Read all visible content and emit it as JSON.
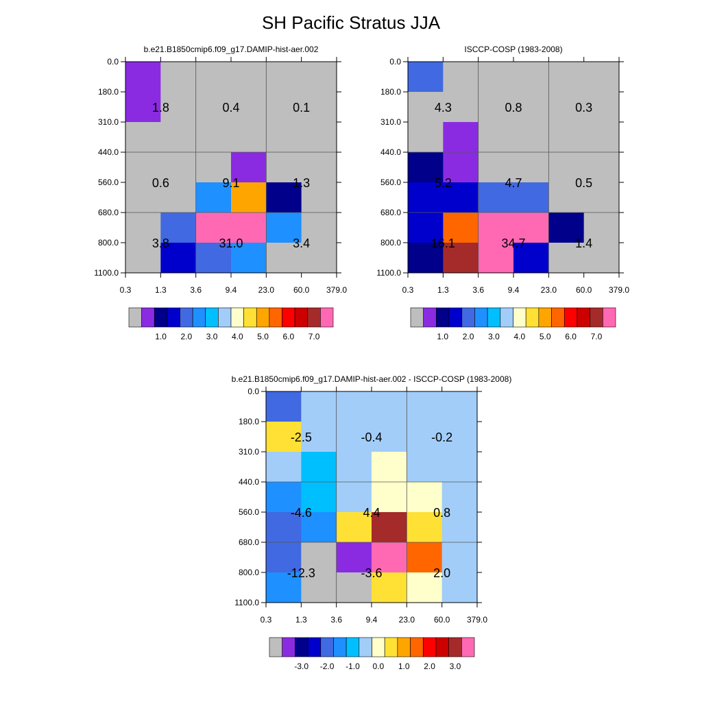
{
  "title": "SH Pacific Stratus JJA",
  "x_tick_labels": [
    "0.3",
    "1.3",
    "3.6",
    "9.4",
    "23.0",
    "60.0",
    "379.0"
  ],
  "y_tick_labels": [
    "0.0",
    "180.0",
    "310.0",
    "440.0",
    "560.0",
    "680.0",
    "800.0",
    "1100.0"
  ],
  "palettes": {
    "abs": [
      "#bebebe",
      "#8a2be2",
      "#00008b",
      "#0000cd",
      "#4169e1",
      "#1e90ff",
      "#00bfff",
      "#a2cdf9",
      "#ffffcc",
      "#ffe135",
      "#ffa500",
      "#ff6600",
      "#ff0000",
      "#cd0000",
      "#a52a2a",
      "#ff69b4"
    ],
    "diff": [
      "#bebebe",
      "#8a2be2",
      "#00008b",
      "#0000cd",
      "#4169e1",
      "#1e90ff",
      "#00bfff",
      "#a2cdf9",
      "#ffffcc",
      "#ffe135",
      "#ffa500",
      "#ff6600",
      "#ff0000",
      "#cd0000",
      "#a52a2a",
      "#ff69b4"
    ]
  },
  "chart_data": [
    {
      "type": "heatmap",
      "title": "b.e21.B1850cmip6.f09_g17.DAMIP-hist-aer.002",
      "x_bins": [
        "0.3",
        "1.3",
        "3.6",
        "9.4",
        "23.0",
        "60.0",
        "379.0"
      ],
      "y_bins": [
        "0.0",
        "180.0",
        "310.0",
        "440.0",
        "560.0",
        "680.0",
        "800.0",
        "1100.0"
      ],
      "cell_color_index": [
        [
          1,
          0,
          0,
          0,
          0,
          0
        ],
        [
          1,
          0,
          0,
          0,
          0,
          0
        ],
        [
          0,
          0,
          0,
          0,
          0,
          0
        ],
        [
          0,
          0,
          0,
          1,
          0,
          0
        ],
        [
          0,
          0,
          5,
          10,
          2,
          0
        ],
        [
          0,
          4,
          15,
          15,
          5,
          0
        ],
        [
          0,
          3,
          4,
          5,
          0,
          0
        ]
      ],
      "group_values": [
        {
          "label": "1.8",
          "value": 1.8
        },
        {
          "label": "0.4",
          "value": 0.4
        },
        {
          "label": "0.1",
          "value": 0.1
        },
        {
          "label": "0.6",
          "value": 0.6
        },
        {
          "label": "9.1",
          "value": 9.1
        },
        {
          "label": "1.3",
          "value": 1.3
        },
        {
          "label": "3.8",
          "value": 3.8
        },
        {
          "label": "31.0",
          "value": 31.0
        },
        {
          "label": "3.4",
          "value": 3.4
        }
      ],
      "colorbar_labels": [
        "1.0",
        "2.0",
        "3.0",
        "4.0",
        "5.0",
        "6.0",
        "7.0"
      ]
    },
    {
      "type": "heatmap",
      "title": "ISCCP-COSP (1983-2008)",
      "x_bins": [
        "0.3",
        "1.3",
        "3.6",
        "9.4",
        "23.0",
        "60.0",
        "379.0"
      ],
      "y_bins": [
        "0.0",
        "180.0",
        "310.0",
        "440.0",
        "560.0",
        "680.0",
        "800.0",
        "1100.0"
      ],
      "cell_color_index": [
        [
          4,
          0,
          0,
          0,
          0,
          0
        ],
        [
          0,
          0,
          0,
          0,
          0,
          0
        ],
        [
          0,
          1,
          0,
          0,
          0,
          0
        ],
        [
          2,
          1,
          0,
          0,
          0,
          0
        ],
        [
          3,
          3,
          4,
          4,
          0,
          0
        ],
        [
          3,
          11,
          15,
          15,
          2,
          0
        ],
        [
          2,
          14,
          15,
          3,
          0,
          0
        ]
      ],
      "group_values": [
        {
          "label": "4.3",
          "value": 4.3
        },
        {
          "label": "0.8",
          "value": 0.8
        },
        {
          "label": "0.3",
          "value": 0.3
        },
        {
          "label": "5.2",
          "value": 5.2
        },
        {
          "label": "4.7",
          "value": 4.7
        },
        {
          "label": "0.5",
          "value": 0.5
        },
        {
          "label": "16.1",
          "value": 16.1
        },
        {
          "label": "34.7",
          "value": 34.7
        },
        {
          "label": "1.4",
          "value": 1.4
        }
      ],
      "colorbar_labels": [
        "1.0",
        "2.0",
        "3.0",
        "4.0",
        "5.0",
        "6.0",
        "7.0"
      ]
    },
    {
      "type": "heatmap",
      "title": "b.e21.B1850cmip6.f09_g17.DAMIP-hist-aer.002 - ISCCP-COSP (1983-2008)",
      "x_bins": [
        "0.3",
        "1.3",
        "3.6",
        "9.4",
        "23.0",
        "60.0",
        "379.0"
      ],
      "y_bins": [
        "0.0",
        "180.0",
        "310.0",
        "440.0",
        "560.0",
        "680.0",
        "800.0",
        "1100.0"
      ],
      "cell_color_index": [
        [
          4,
          7,
          7,
          7,
          7,
          7
        ],
        [
          9,
          7,
          7,
          7,
          7,
          7
        ],
        [
          7,
          6,
          7,
          8,
          7,
          7
        ],
        [
          5,
          6,
          7,
          8,
          8,
          7
        ],
        [
          4,
          5,
          9,
          14,
          9,
          7
        ],
        [
          4,
          0,
          1,
          15,
          11,
          7
        ],
        [
          5,
          0,
          0,
          9,
          8,
          7
        ]
      ],
      "group_values": [
        {
          "label": "-2.5",
          "value": -2.5
        },
        {
          "label": "-0.4",
          "value": -0.4
        },
        {
          "label": "-0.2",
          "value": -0.2
        },
        {
          "label": "-4.6",
          "value": -4.6
        },
        {
          "label": "4.4",
          "value": 4.4
        },
        {
          "label": "0.8",
          "value": 0.8
        },
        {
          "label": "-12.3",
          "value": -12.3
        },
        {
          "label": "-3.6",
          "value": -3.6
        },
        {
          "label": "2.0",
          "value": 2.0
        }
      ],
      "colorbar_labels": [
        "-3.0",
        "-2.0",
        "-1.0",
        "0.0",
        "1.0",
        "2.0",
        "3.0"
      ]
    }
  ]
}
